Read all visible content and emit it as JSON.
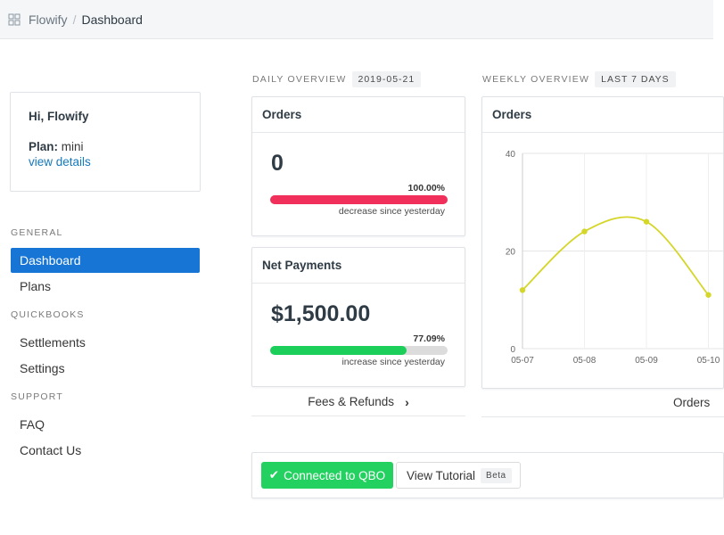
{
  "breadcrumb": {
    "app": "Flowify",
    "separator": "/",
    "page": "Dashboard"
  },
  "account": {
    "greeting": "Hi, Flowify",
    "plan_label": "Plan:",
    "plan_value": "mini",
    "details_link": "view details"
  },
  "menu": {
    "general_label": "General",
    "general_items": [
      {
        "label": "Dashboard",
        "active": true
      },
      {
        "label": "Plans",
        "active": false
      }
    ],
    "quickbooks_label": "Quickbooks",
    "quickbooks_items": [
      {
        "label": "Settlements"
      },
      {
        "label": "Settings"
      }
    ],
    "support_label": "Support",
    "support_items": [
      {
        "label": "FAQ"
      },
      {
        "label": "Contact Us"
      }
    ]
  },
  "daily": {
    "label": "Daily Overview",
    "date": "2019-05-21",
    "orders": {
      "title": "Orders",
      "value": "0",
      "percent_text": "100.00%",
      "percent": 100.0,
      "caption": "decrease since yesterday",
      "bar_color": "#f0305b"
    },
    "payments": {
      "title": "Net Payments",
      "value": "$1,500.00",
      "percent_text": "77.09%",
      "percent": 77.09,
      "caption": "increase since yesterday",
      "bar_color": "#1ccf5a"
    },
    "fees_link": "Fees & Refunds"
  },
  "weekly": {
    "label": "Weekly Overview",
    "range": "Last 7 Days",
    "chart_title": "Orders",
    "footer_link": "Orders"
  },
  "chart_data": {
    "type": "line",
    "title": "Orders",
    "x": [
      "05-07",
      "05-08",
      "05-09",
      "05-10"
    ],
    "y_ticks": [
      0,
      20,
      40
    ],
    "ylim": [
      0,
      40
    ],
    "series": [
      {
        "values": [
          12,
          24,
          26,
          11
        ],
        "color": "#d4d62a"
      }
    ],
    "grid": true
  },
  "actions": {
    "connected_label": "Connected to QBO",
    "tutorial_label": "View Tutorial",
    "beta_badge": "Beta"
  },
  "icons": {
    "apps": "apps-icon",
    "check": "check-icon",
    "chevron": "chevron-right-icon"
  }
}
